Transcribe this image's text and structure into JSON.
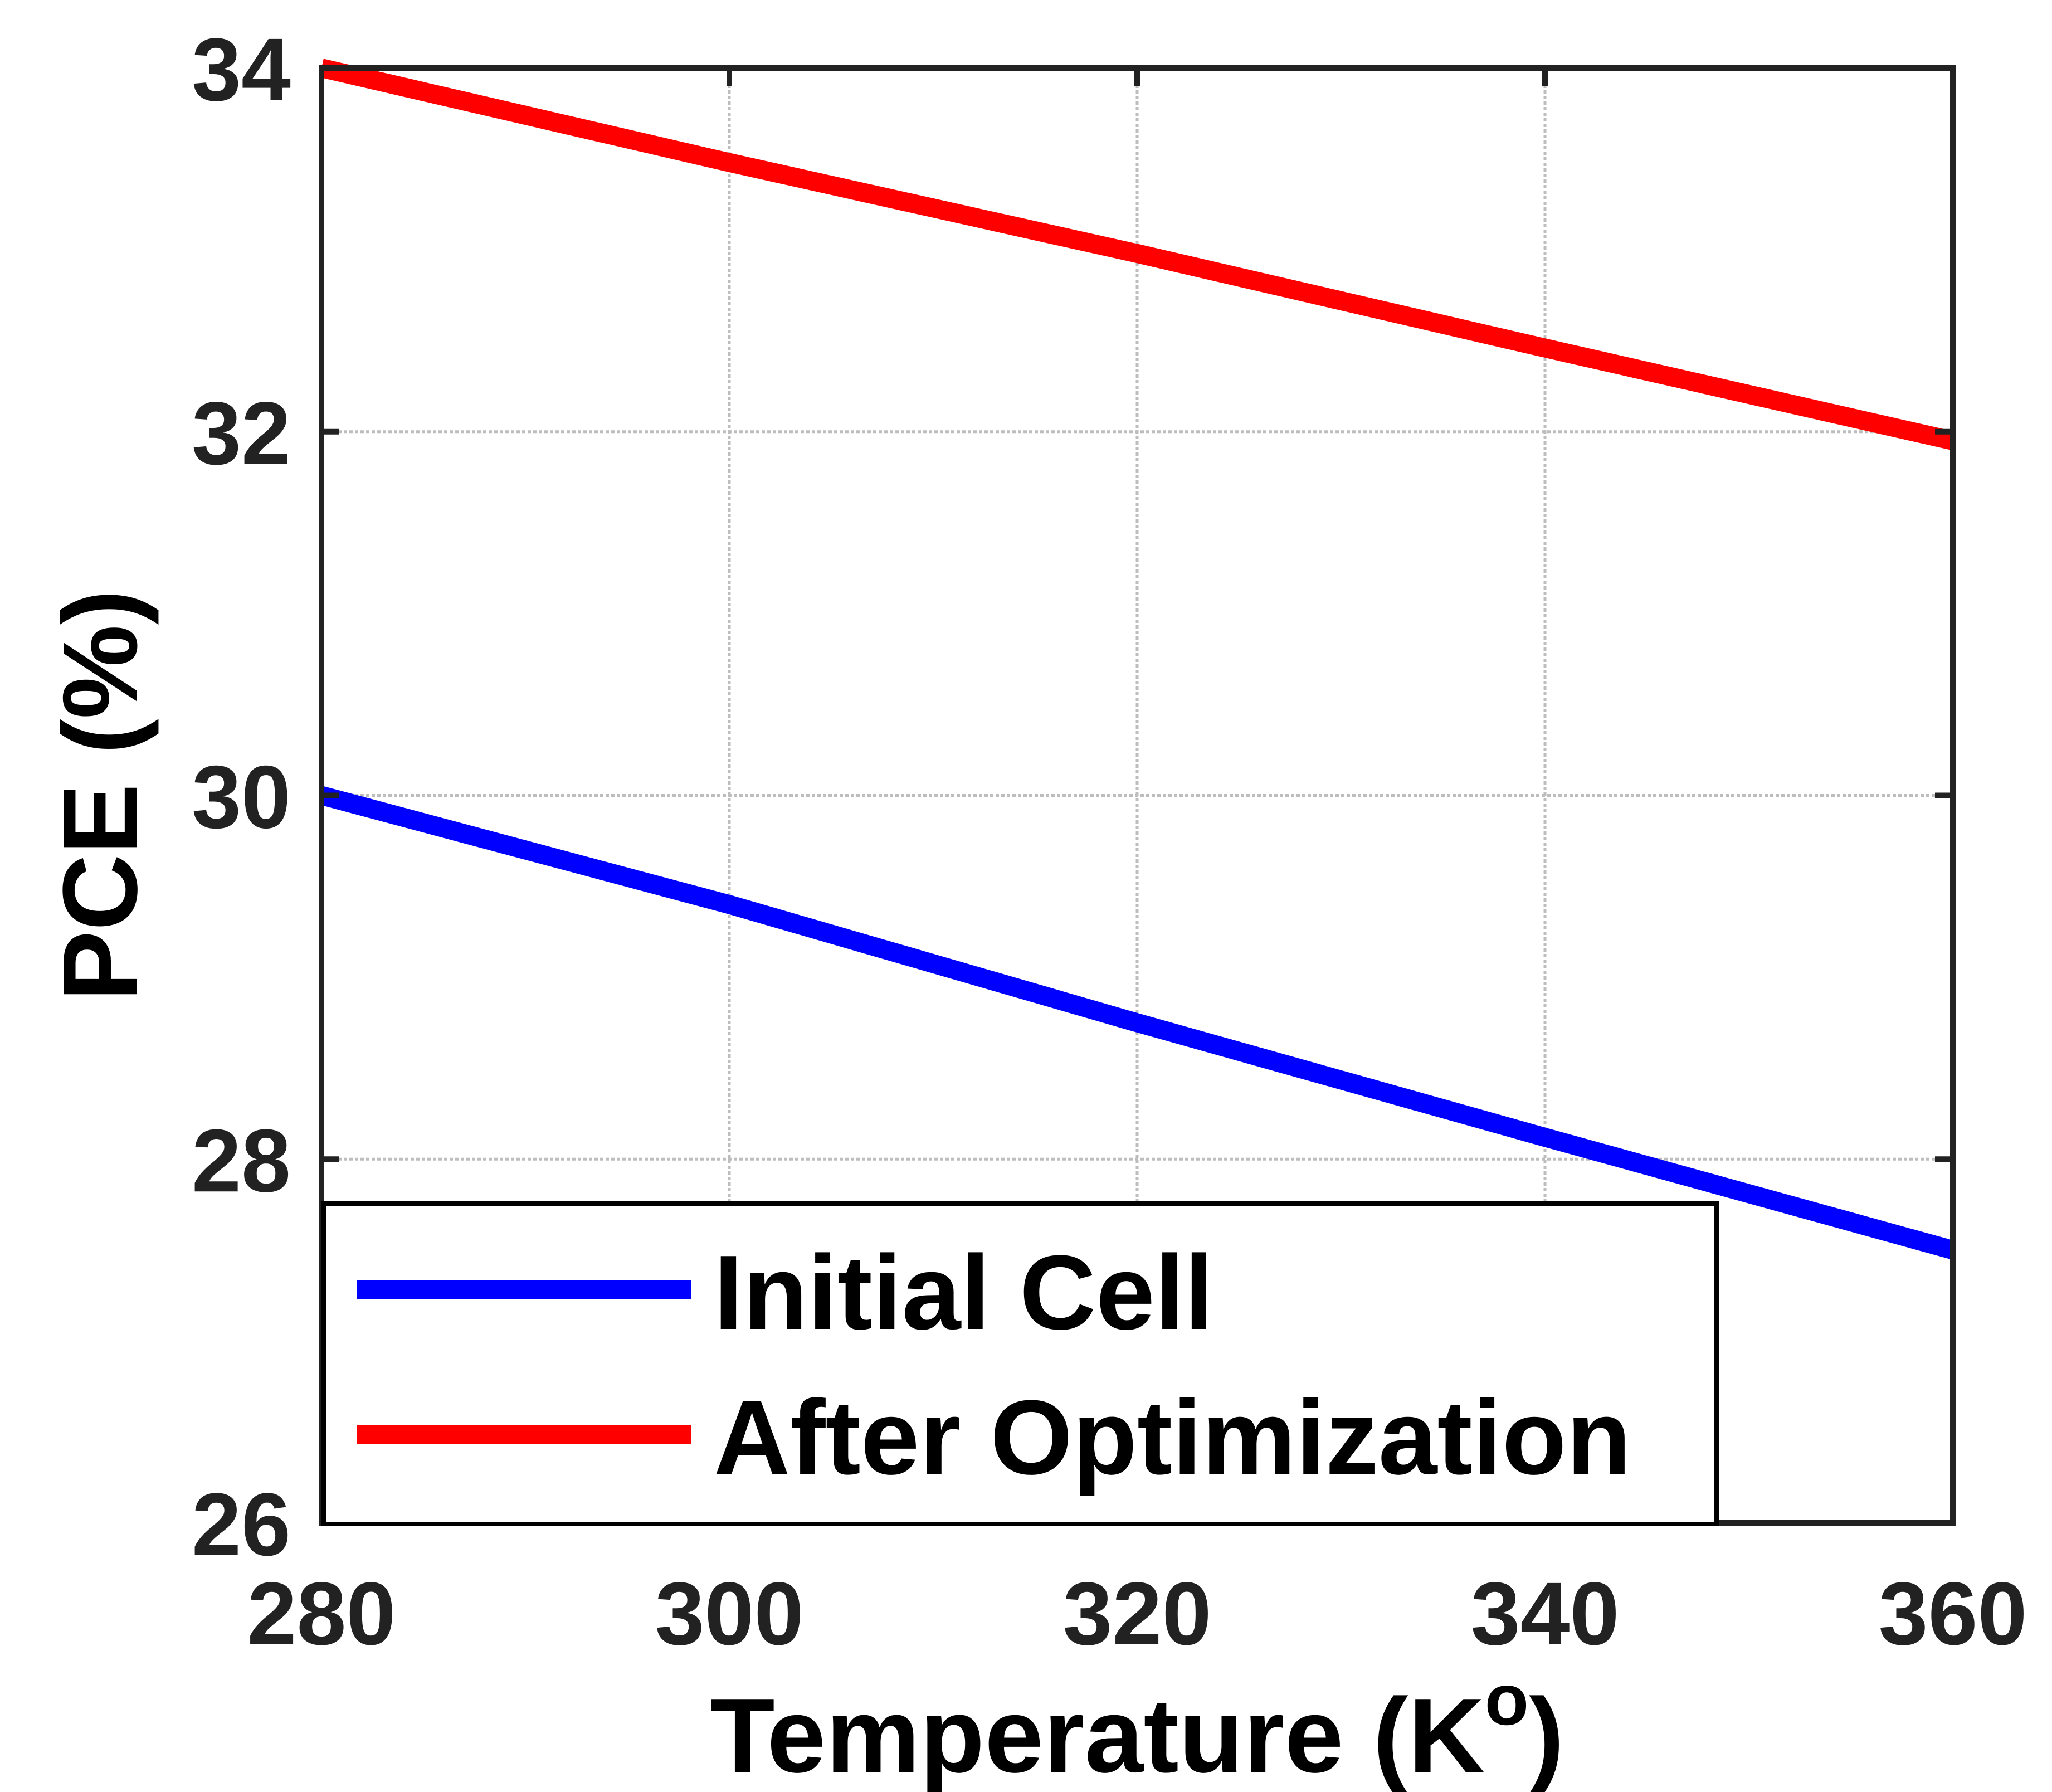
{
  "chart_data": {
    "type": "line",
    "title": "",
    "xlabel": "Temperature (K",
    "xlabel_superscript": "o",
    "xlabel_close": ")",
    "ylabel": "PCE (%)",
    "xlim": [
      280,
      360
    ],
    "ylim": [
      26,
      34
    ],
    "xticks": [
      280,
      300,
      320,
      340,
      360
    ],
    "yticks": [
      26,
      28,
      30,
      32,
      34
    ],
    "grid": true,
    "legend_position": "bottom-left",
    "series": [
      {
        "name": "Initial Cell",
        "color": "#0000ff",
        "x": [
          280,
          300,
          320,
          340,
          360
        ],
        "y": [
          30.0,
          29.4,
          28.75,
          28.12,
          27.5
        ]
      },
      {
        "name": "After Optimization",
        "color": "#ff0000",
        "x": [
          280,
          300,
          320,
          340,
          360
        ],
        "y": [
          34.0,
          33.48,
          32.98,
          32.46,
          31.95
        ]
      }
    ]
  }
}
